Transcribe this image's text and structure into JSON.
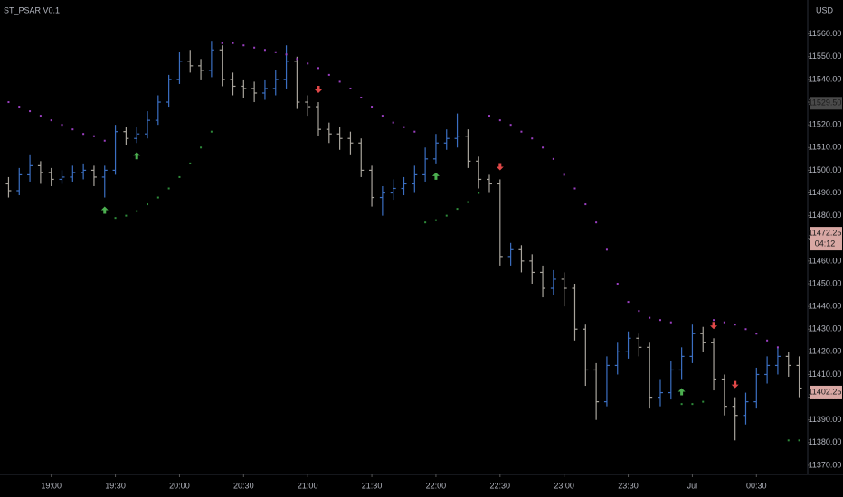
{
  "chart_data": {
    "type": "ohlc",
    "title": "ST_PSAR V0.1",
    "currency": "USD",
    "x": [
      "18:40",
      "18:45",
      "18:50",
      "18:55",
      "19:00",
      "19:05",
      "19:10",
      "19:15",
      "19:20",
      "19:25",
      "19:30",
      "19:35",
      "19:40",
      "19:45",
      "19:50",
      "19:55",
      "20:00",
      "20:05",
      "20:10",
      "20:15",
      "20:20",
      "20:25",
      "20:30",
      "20:35",
      "20:40",
      "20:45",
      "20:50",
      "20:55",
      "21:00",
      "21:05",
      "21:10",
      "21:15",
      "21:20",
      "21:25",
      "21:30",
      "21:35",
      "21:40",
      "21:45",
      "21:50",
      "21:55",
      "22:00",
      "22:05",
      "22:10",
      "22:15",
      "22:20",
      "22:25",
      "22:30",
      "22:35",
      "22:40",
      "22:45",
      "22:50",
      "22:55",
      "23:00",
      "23:05",
      "23:10",
      "23:15",
      "23:20",
      "23:25",
      "23:30",
      "23:35",
      "23:40",
      "23:45",
      "23:50",
      "23:55",
      "00:00",
      "00:05",
      "00:10",
      "00:15",
      "00:20",
      "00:25",
      "00:30",
      "00:35",
      "00:40",
      "00:45",
      "00:50"
    ],
    "open": [
      11494,
      11491,
      11498,
      11502,
      11499,
      11496,
      11497,
      11499,
      11500,
      11497,
      11500,
      11517,
      11514,
      11516,
      11522,
      11530,
      11540,
      11548,
      11546,
      11544,
      11553,
      11540,
      11537,
      11536,
      11534,
      11536,
      11540,
      11548,
      11530,
      11528,
      11518,
      11516,
      11514,
      11512,
      11500,
      11488,
      11490,
      11492,
      11494,
      11498,
      11505,
      11512,
      11514,
      11515,
      11504,
      11496,
      11494,
      11462,
      11465,
      11460,
      11455,
      11448,
      11452,
      11448,
      11430,
      11412,
      11398,
      11414,
      11420,
      11426,
      11422,
      11400,
      11402,
      11412,
      11418,
      11428,
      11424,
      11408,
      11396,
      11392,
      11398,
      11410,
      11414,
      11418,
      11414
    ],
    "high": [
      11497,
      11501,
      11507,
      11504,
      11501,
      11500,
      11502,
      11503,
      11502,
      11502,
      11520,
      11519,
      11519,
      11526,
      11533,
      11542,
      11552,
      11553,
      11549,
      11557,
      11555,
      11543,
      11540,
      11539,
      11540,
      11544,
      11555,
      11550,
      11533,
      11530,
      11521,
      11519,
      11517,
      11514,
      11502,
      11493,
      11496,
      11497,
      11502,
      11510,
      11516,
      11518,
      11525,
      11518,
      11506,
      11498,
      11496,
      11468,
      11467,
      11463,
      11458,
      11456,
      11455,
      11450,
      11432,
      11415,
      11418,
      11424,
      11429,
      11428,
      11424,
      11408,
      11416,
      11422,
      11432,
      11431,
      11426,
      11410,
      11400,
      11402,
      11413,
      11418,
      11422,
      11420,
      11418
    ],
    "low": [
      11488,
      11489,
      11495,
      11494,
      11493,
      11494,
      11495,
      11496,
      11493,
      11488,
      11498,
      11511,
      11512,
      11514,
      11520,
      11528,
      11538,
      11543,
      11540,
      11541,
      11537,
      11533,
      11532,
      11530,
      11531,
      11533,
      11536,
      11527,
      11524,
      11515,
      11512,
      11509,
      11507,
      11497,
      11484,
      11480,
      11487,
      11489,
      11490,
      11495,
      11503,
      11509,
      11510,
      11501,
      11492,
      11490,
      11458,
      11458,
      11455,
      11450,
      11444,
      11445,
      11440,
      11425,
      11405,
      11390,
      11396,
      11410,
      11417,
      11418,
      11395,
      11396,
      11399,
      11408,
      11415,
      11420,
      11403,
      11392,
      11381,
      11388,
      11395,
      11406,
      11410,
      11409,
      11400
    ],
    "close": [
      11491,
      11498,
      11502,
      11499,
      11496,
      11497,
      11499,
      11500,
      11497,
      11500,
      11517,
      11514,
      11516,
      11522,
      11530,
      11540,
      11548,
      11546,
      11544,
      11553,
      11540,
      11537,
      11536,
      11534,
      11536,
      11540,
      11548,
      11530,
      11528,
      11518,
      11516,
      11514,
      11512,
      11500,
      11488,
      11490,
      11492,
      11494,
      11498,
      11505,
      11512,
      11514,
      11515,
      11504,
      11496,
      11494,
      11462,
      11465,
      11460,
      11455,
      11448,
      11452,
      11448,
      11430,
      11412,
      11398,
      11414,
      11420,
      11426,
      11422,
      11400,
      11402,
      11412,
      11418,
      11428,
      11424,
      11408,
      11396,
      11392,
      11398,
      11410,
      11414,
      11418,
      11414,
      11404
    ],
    "psar": [
      11530,
      11528,
      11526,
      11524,
      11522,
      11520,
      11518,
      11516,
      11515,
      11513,
      11479,
      11480,
      11482,
      11485,
      11488,
      11492,
      11497,
      11503,
      11510,
      11517,
      11556,
      11556,
      11555,
      11554,
      11553,
      11552,
      11551,
      11549,
      11547,
      11545,
      11542,
      11539,
      11536,
      11532,
      11528,
      11524,
      11521,
      11519,
      11517,
      11477,
      11478,
      11480,
      11483,
      11486,
      11490,
      11524,
      11522,
      11520,
      11517,
      11514,
      11510,
      11505,
      11498,
      11492,
      11485,
      11477,
      11465,
      11450,
      11442,
      11438,
      11435,
      11434,
      11433,
      11397,
      11397,
      11398,
      11434,
      11433,
      11432,
      11430,
      11428,
      11425,
      11422,
      11381,
      11381
    ],
    "buy_signals": [
      "19:25",
      "19:40",
      "22:00",
      "23:55"
    ],
    "sell_signals": [
      "21:05",
      "22:30",
      "00:10",
      "00:20"
    ],
    "up_color": "#3b6fc2",
    "down_color": "#a8a49c",
    "psar_above_color": "#9b3fc2",
    "psar_below_color": "#2e8b3a",
    "buy_color": "#4caf50",
    "sell_color": "#e04848",
    "xlim": [
      "18:36",
      "00:54"
    ],
    "xticks": [
      "19:00",
      "19:30",
      "20:00",
      "20:30",
      "21:00",
      "21:30",
      "22:00",
      "22:30",
      "23:00",
      "23:30",
      {
        "value": "00:00",
        "label": "Jul"
      },
      "00:30"
    ],
    "ylim": [
      11366,
      11575
    ],
    "yticks": [
      {
        "value": 11370,
        "label": "11370.00"
      },
      {
        "value": 11380,
        "label": "11380.00"
      },
      {
        "value": 11390,
        "label": "11390.00"
      },
      {
        "value": 11400,
        "label": "11400.00"
      },
      {
        "value": 11410,
        "label": "11410.00"
      },
      {
        "value": 11420,
        "label": "11420.00"
      },
      {
        "value": 11430,
        "label": "11430.00"
      },
      {
        "value": 11440,
        "label": "11440.00"
      },
      {
        "value": 11450,
        "label": "11450.00"
      },
      {
        "value": 11460,
        "label": "11460.00"
      },
      {
        "value": 11470,
        "label": "11470.00"
      },
      {
        "value": 11480,
        "label": "11480.00"
      },
      {
        "value": 11490,
        "label": "11490.00"
      },
      {
        "value": 11500,
        "label": "11500.00"
      },
      {
        "value": 11510,
        "label": "11510.00"
      },
      {
        "value": 11520,
        "label": "11520.00"
      },
      {
        "value": 11530,
        "label": "11530.00"
      },
      {
        "value": 11540,
        "label": "11540.00"
      },
      {
        "value": 11550,
        "label": "11550.00"
      },
      {
        "value": 11560,
        "label": "11560.00"
      }
    ],
    "price_markers": [
      {
        "value": 11529.5,
        "label": "11529.50",
        "color": "#4a4a4a"
      },
      {
        "value": 11472.25,
        "label": "11472.25",
        "color": "#d9a8a4",
        "countdown": "04:12"
      },
      {
        "value": 11402.25,
        "label": "11402.25",
        "color": "#d9a8a4"
      }
    ]
  }
}
